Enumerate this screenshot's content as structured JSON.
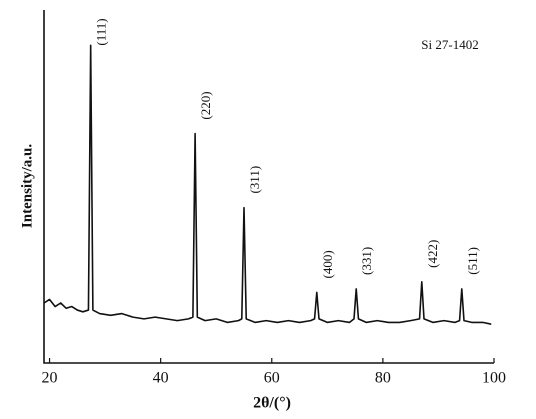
{
  "chart_data": {
    "type": "line",
    "x_label": "2θ/(°)",
    "y_label": "Intensity/a.u.",
    "annotation": "Si 27-1402",
    "xlim": [
      19,
      100
    ],
    "ylim": [
      0,
      100
    ],
    "xticks": [
      20,
      40,
      60,
      80,
      100
    ],
    "series": [
      {
        "name": "Si",
        "color": "#111111",
        "x": [
          19,
          20,
          21,
          22,
          23,
          24,
          25,
          26,
          27,
          27.4,
          27.8,
          29,
          31,
          33,
          35,
          37,
          39,
          41,
          43,
          45,
          45.8,
          46.2,
          46.6,
          48,
          50,
          52,
          54,
          54.6,
          55.0,
          55.4,
          57,
          59,
          61,
          63,
          65,
          67,
          67.7,
          68.1,
          68.5,
          70,
          72,
          74,
          74.8,
          75.2,
          75.6,
          77,
          79,
          81,
          83,
          85,
          86.6,
          87.0,
          87.4,
          89,
          91,
          93,
          93.8,
          94.2,
          94.6,
          96,
          98,
          99.5
        ],
        "values": [
          17,
          18,
          16,
          17,
          15.5,
          16,
          15,
          14.5,
          15,
          90,
          15,
          14,
          13.5,
          14,
          13,
          12.5,
          13,
          12.5,
          12,
          12.5,
          13,
          65,
          13,
          12,
          12.5,
          11.5,
          12,
          12.5,
          44,
          12.5,
          11.5,
          12,
          11.5,
          12,
          11.5,
          12,
          12.5,
          20,
          12.5,
          11.5,
          12,
          11.5,
          12.5,
          21,
          12.5,
          11.5,
          12,
          11.5,
          11.5,
          12,
          12.5,
          23,
          12.5,
          11.5,
          12,
          11.5,
          12,
          21,
          12,
          11.5,
          11.5,
          11
        ]
      }
    ],
    "peak_labels": [
      {
        "text": "(111)",
        "x": 27.4
      },
      {
        "text": "(220)",
        "x": 46.2
      },
      {
        "text": "(311)",
        "x": 55.0
      },
      {
        "text": "(400)",
        "x": 68.1
      },
      {
        "text": "(331)",
        "x": 75.2
      },
      {
        "text": "(422)",
        "x": 87.0
      },
      {
        "text": "(511)",
        "x": 94.2
      }
    ]
  }
}
